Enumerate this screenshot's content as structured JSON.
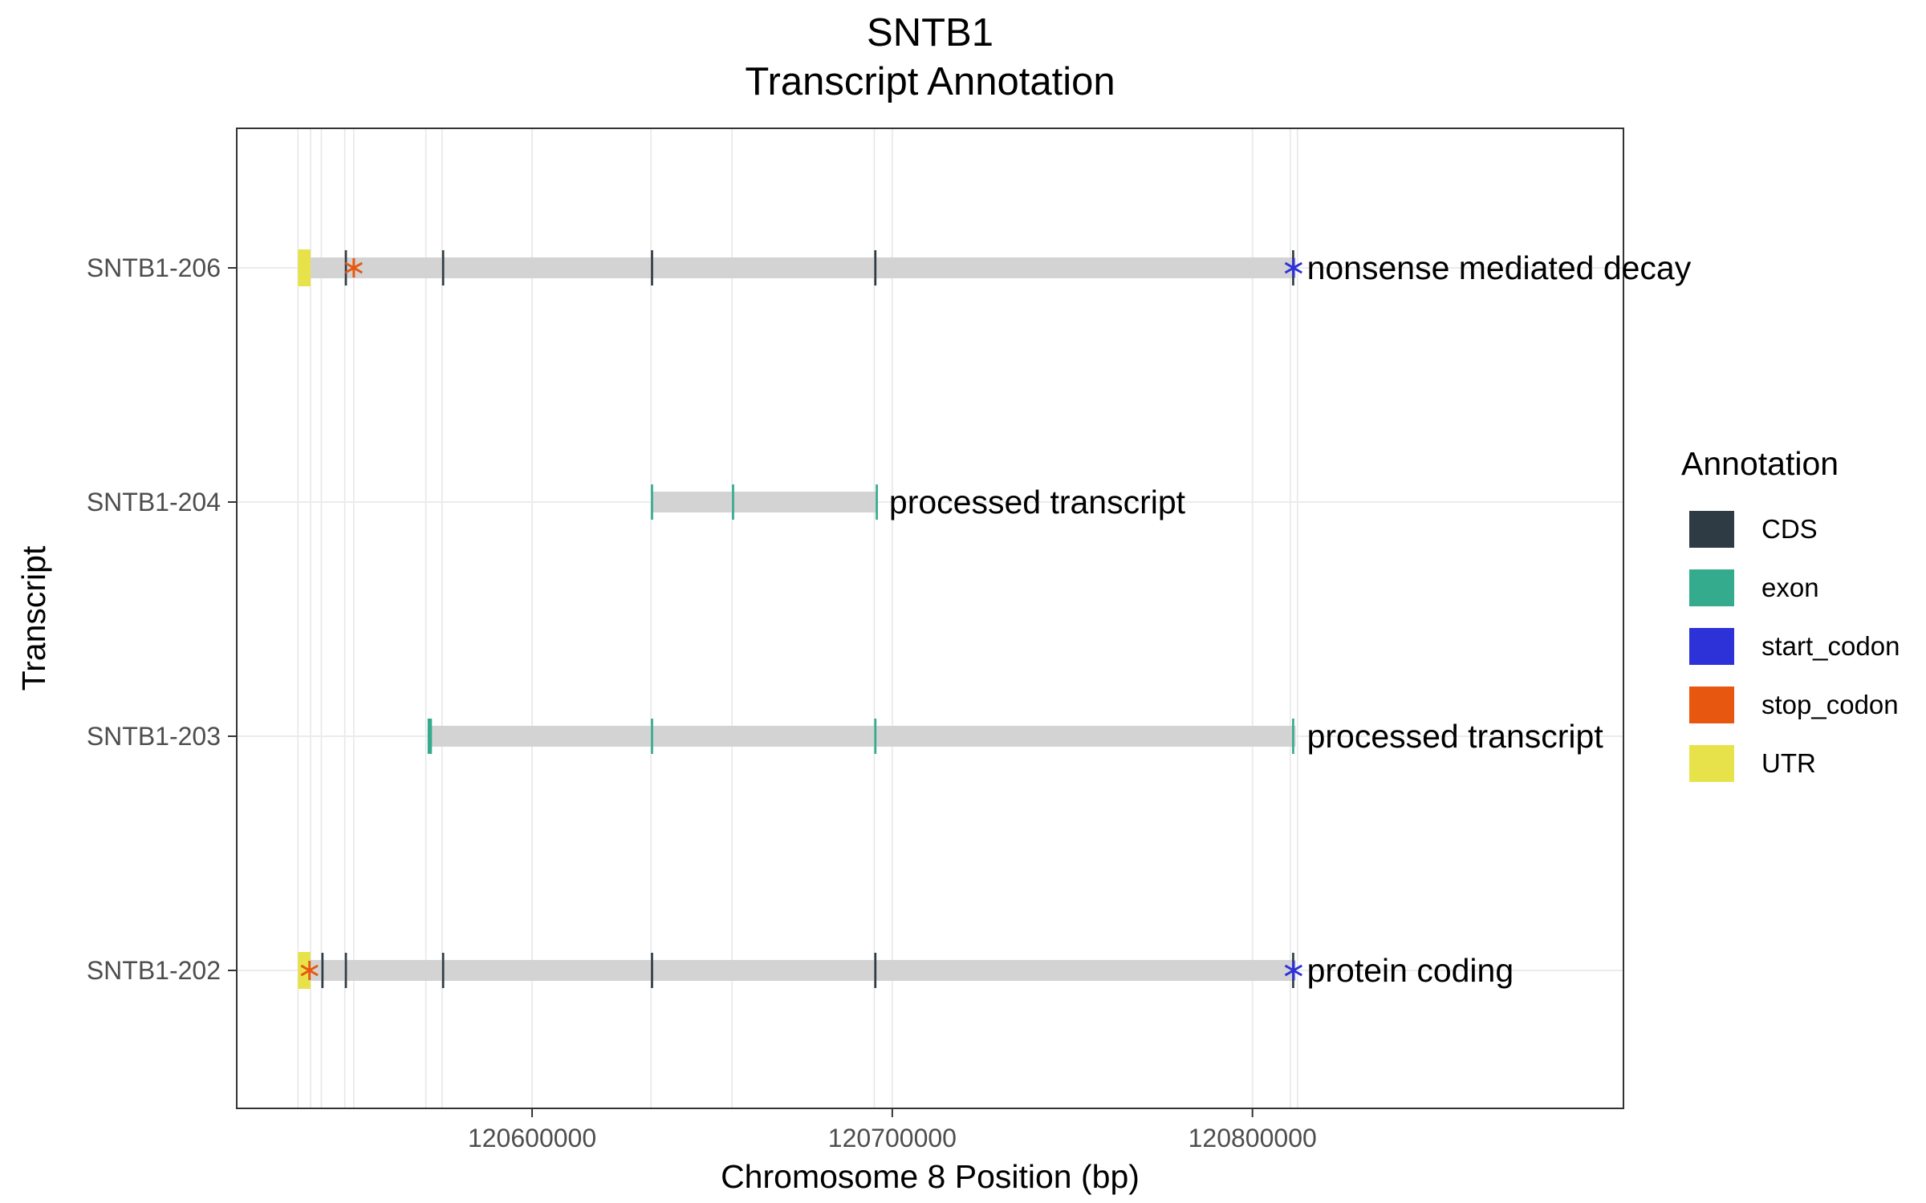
{
  "chart_data": {
    "type": "gene-transcript-annotation",
    "title": "SNTB1",
    "subtitle": "Transcript Annotation",
    "xlabel": "Chromosome 8 Position (bp)",
    "ylabel": "Transcript",
    "xlim": [
      120518000,
      120903000
    ],
    "x_ticks": [
      120600000,
      120700000,
      120800000
    ],
    "x_tick_labels": [
      "120600000",
      "120700000",
      "120800000"
    ],
    "grid": true,
    "legend": {
      "title": "Annotation",
      "position": "right",
      "items": [
        {
          "label": "CDS",
          "color": "#2f3b44"
        },
        {
          "label": "exon",
          "color": "#35ab8e"
        },
        {
          "label": "start_codon",
          "color": "#2c31d8"
        },
        {
          "label": "stop_codon",
          "color": "#e8570f"
        },
        {
          "label": "UTR",
          "color": "#e8e24a"
        }
      ]
    },
    "transcript_order": [
      "SNTB1-206",
      "SNTB1-204",
      "SNTB1-203",
      "SNTB1-202"
    ],
    "transcripts": [
      {
        "name": "SNTB1-206",
        "biotype_label": "nonsense mediated decay",
        "span": [
          120535000,
          120812000
        ],
        "utr": [
          [
            120535000,
            120538500
          ]
        ],
        "cds": [
          [
            120548000,
            120548600
          ],
          [
            120575000,
            120575600
          ],
          [
            120633000,
            120633600
          ],
          [
            120695000,
            120695600
          ],
          [
            120811000,
            120811600
          ]
        ],
        "exon": [],
        "start_codon": [
          120811400
        ],
        "stop_codon": [
          120550500
        ]
      },
      {
        "name": "SNTB1-204",
        "biotype_label": "processed transcript",
        "span": [
          120633000,
          120696000
        ],
        "utr": [],
        "cds": [],
        "exon": [
          [
            120633000,
            120633600
          ],
          [
            120655500,
            120656100
          ],
          [
            120695400,
            120696000
          ]
        ],
        "start_codon": [],
        "stop_codon": []
      },
      {
        "name": "SNTB1-203",
        "biotype_label": "processed transcript",
        "span": [
          120571000,
          120812000
        ],
        "utr": [],
        "cds": [],
        "exon": [
          [
            120571000,
            120572200
          ],
          [
            120633000,
            120633600
          ],
          [
            120695000,
            120695600
          ],
          [
            120811000,
            120811600
          ]
        ],
        "start_codon": [],
        "stop_codon": []
      },
      {
        "name": "SNTB1-202",
        "biotype_label": "protein coding",
        "span": [
          120535000,
          120812000
        ],
        "utr": [
          [
            120535000,
            120538500
          ]
        ],
        "cds": [
          [
            120541500,
            120542100
          ],
          [
            120548000,
            120548600
          ],
          [
            120575000,
            120575600
          ],
          [
            120633000,
            120633600
          ],
          [
            120695000,
            120695600
          ],
          [
            120811000,
            120811600
          ]
        ],
        "exon": [],
        "start_codon": [
          120811400
        ],
        "stop_codon": [
          120538200
        ]
      }
    ],
    "vertical_grid_positions": [
      120535000,
      120538500,
      120541500,
      120548000,
      120550500,
      120570500,
      120575000,
      120633000,
      120655500,
      120695000,
      120810500,
      120812500
    ]
  }
}
